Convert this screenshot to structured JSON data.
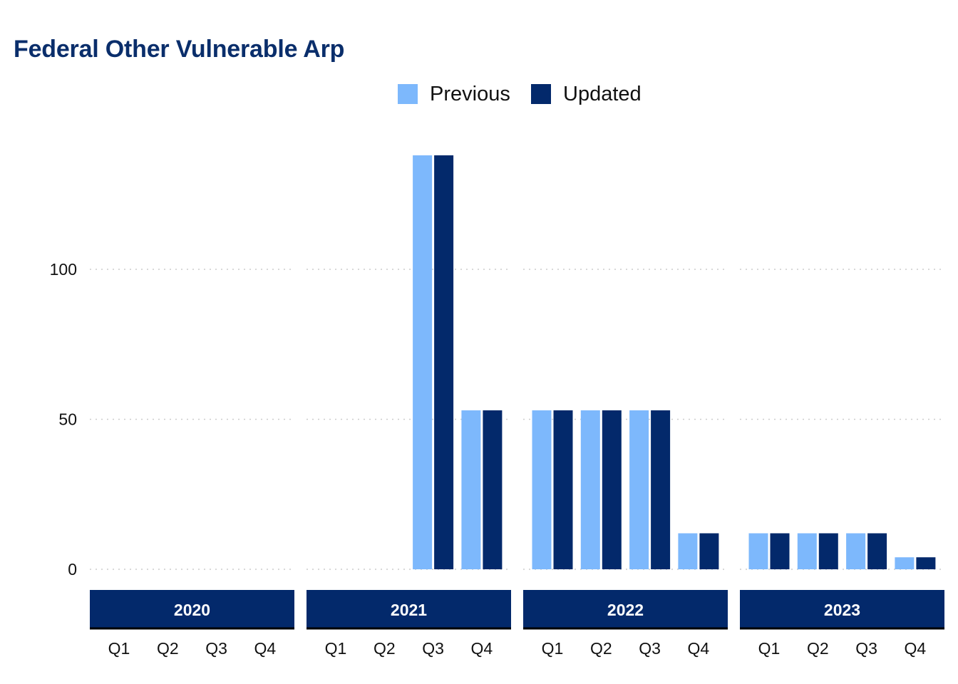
{
  "chart_data": {
    "type": "bar",
    "title": "Federal Other Vulnerable Arp",
    "xlabel": "",
    "ylabel": "",
    "ylim": [
      -6,
      140
    ],
    "yticks": [
      0,
      50,
      100
    ],
    "grid": "horizontal dotted",
    "legend_position": "top",
    "years": [
      "2020",
      "2021",
      "2022",
      "2023"
    ],
    "quarters": [
      "Q1",
      "Q2",
      "Q3",
      "Q4"
    ],
    "series": [
      {
        "name": "Previous",
        "color": "#7db8fc",
        "values": [
          null,
          null,
          null,
          null,
          null,
          null,
          138,
          53,
          53,
          53,
          53,
          12,
          12,
          12,
          12,
          4
        ]
      },
      {
        "name": "Updated",
        "color": "#03296b",
        "values": [
          null,
          null,
          null,
          null,
          null,
          null,
          138,
          53,
          53,
          53,
          53,
          12,
          12,
          12,
          12,
          4
        ]
      }
    ]
  },
  "colors": {
    "title": "#0a2e6b",
    "strip": "#03296b",
    "strip_text": "#ffffff",
    "grid": "#cccccc"
  }
}
